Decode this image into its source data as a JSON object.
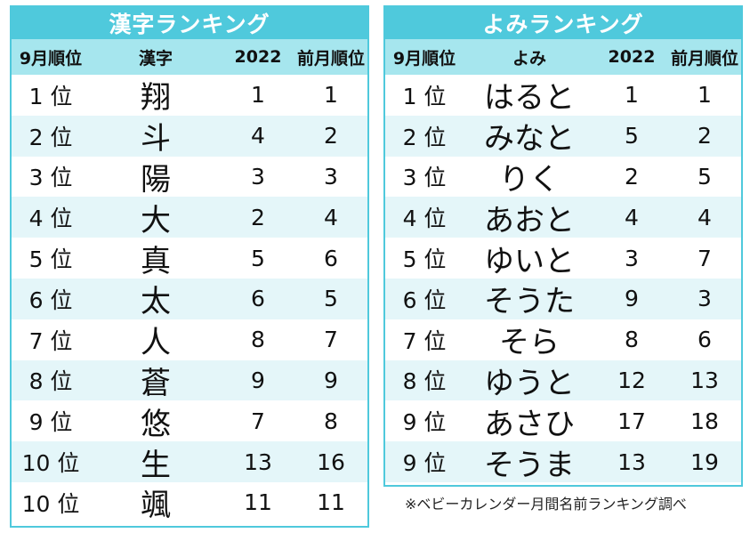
{
  "kanji": {
    "title": "漢字ランキング",
    "headers": [
      "9月順位",
      "漢字",
      "2022",
      "前月順位"
    ],
    "rows": [
      {
        "rank": "1 位",
        "item": "翔",
        "y2022": "1",
        "prev": "1"
      },
      {
        "rank": "2 位",
        "item": "斗",
        "y2022": "4",
        "prev": "2"
      },
      {
        "rank": "3 位",
        "item": "陽",
        "y2022": "3",
        "prev": "3"
      },
      {
        "rank": "4 位",
        "item": "大",
        "y2022": "2",
        "prev": "4"
      },
      {
        "rank": "5 位",
        "item": "真",
        "y2022": "5",
        "prev": "6"
      },
      {
        "rank": "6 位",
        "item": "太",
        "y2022": "6",
        "prev": "5"
      },
      {
        "rank": "7 位",
        "item": "人",
        "y2022": "8",
        "prev": "7"
      },
      {
        "rank": "8 位",
        "item": "蒼",
        "y2022": "9",
        "prev": "9"
      },
      {
        "rank": "9 位",
        "item": "悠",
        "y2022": "7",
        "prev": "8"
      },
      {
        "rank": "10 位",
        "item": "生",
        "y2022": "13",
        "prev": "16"
      },
      {
        "rank": "10 位",
        "item": "颯",
        "y2022": "11",
        "prev": "11"
      }
    ]
  },
  "yomi": {
    "title": "よみランキング",
    "headers": [
      "9月順位",
      "よみ",
      "2022",
      "前月順位"
    ],
    "rows": [
      {
        "rank": "1 位",
        "item": "はると",
        "y2022": "1",
        "prev": "1"
      },
      {
        "rank": "2 位",
        "item": "みなと",
        "y2022": "5",
        "prev": "2"
      },
      {
        "rank": "3 位",
        "item": "りく",
        "y2022": "2",
        "prev": "5"
      },
      {
        "rank": "4 位",
        "item": "あおと",
        "y2022": "4",
        "prev": "4"
      },
      {
        "rank": "5 位",
        "item": "ゆいと",
        "y2022": "3",
        "prev": "7"
      },
      {
        "rank": "6 位",
        "item": "そうた",
        "y2022": "9",
        "prev": "3"
      },
      {
        "rank": "7 位",
        "item": "そら",
        "y2022": "8",
        "prev": "6"
      },
      {
        "rank": "8 位",
        "item": "ゆうと",
        "y2022": "12",
        "prev": "13"
      },
      {
        "rank": "9 位",
        "item": "あさひ",
        "y2022": "17",
        "prev": "18"
      },
      {
        "rank": "9 位",
        "item": "そうま",
        "y2022": "13",
        "prev": "19"
      }
    ]
  },
  "note": "※ベビーカレンダー月間名前ランキング調べ",
  "colors": {
    "accent": "#4fc9dc",
    "header": "#a6e6ee",
    "stripe": "#e4f6f9"
  }
}
